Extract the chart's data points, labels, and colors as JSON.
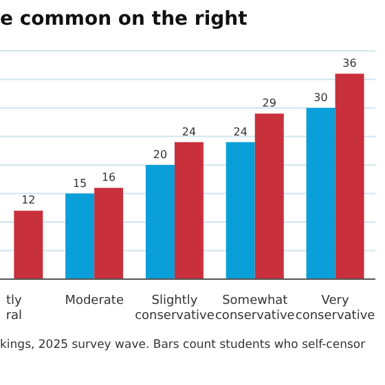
{
  "chart_data": {
    "type": "bar",
    "title": "e common on the right",
    "categories": [
      "tly\nral",
      "Moderate",
      "Slightly\nconservative",
      "Somewhat\nconservative",
      "Very\nconservative"
    ],
    "series": [
      {
        "color": "#0a9fd8",
        "values": [
          null,
          15,
          20,
          24,
          30
        ]
      },
      {
        "color": "#c8303c",
        "values": [
          12,
          16,
          24,
          29,
          36
        ]
      }
    ],
    "grid": "y",
    "tick_labels": "x",
    "data_labels": true,
    "annotations": [
      "kings, 2025 survey wave. Bars count students who self-censor"
    ]
  }
}
